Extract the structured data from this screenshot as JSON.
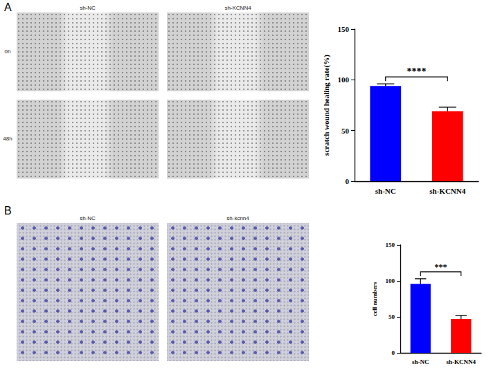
{
  "figure": {
    "panels": [
      {
        "label": "A",
        "image_columns": [
          "sh-NC",
          "sh-KCNN4"
        ],
        "image_rows": [
          "0h",
          "48h"
        ]
      },
      {
        "label": "B",
        "image_columns": [
          "sh-NC",
          "sh-kcnn4"
        ]
      }
    ]
  },
  "chart_data": [
    {
      "type": "bar",
      "y_label": "scratch wound healing rate(%)",
      "categories": [
        "sh-NC",
        "sh-KCNN4"
      ],
      "values": [
        94,
        69
      ],
      "errors": [
        2,
        4
      ],
      "colors": [
        "#0000ff",
        "#ff0000"
      ],
      "ylim": [
        0,
        150
      ],
      "yticks": [
        0,
        50,
        100,
        150
      ],
      "grid": false,
      "annotation": {
        "text": "****",
        "between": [
          "sh-NC",
          "sh-KCNN4"
        ]
      }
    },
    {
      "type": "bar",
      "y_label": "cell numbers",
      "categories": [
        "sh-NC",
        "sh-KCNN4"
      ],
      "values": [
        96,
        47
      ],
      "errors": [
        7,
        5
      ],
      "colors": [
        "#0000ff",
        "#ff0000"
      ],
      "ylim": [
        0,
        150
      ],
      "yticks": [
        0,
        50,
        100,
        150
      ],
      "grid": false,
      "annotation": {
        "text": "***",
        "between": [
          "sh-NC",
          "sh-KCNN4"
        ]
      }
    }
  ]
}
